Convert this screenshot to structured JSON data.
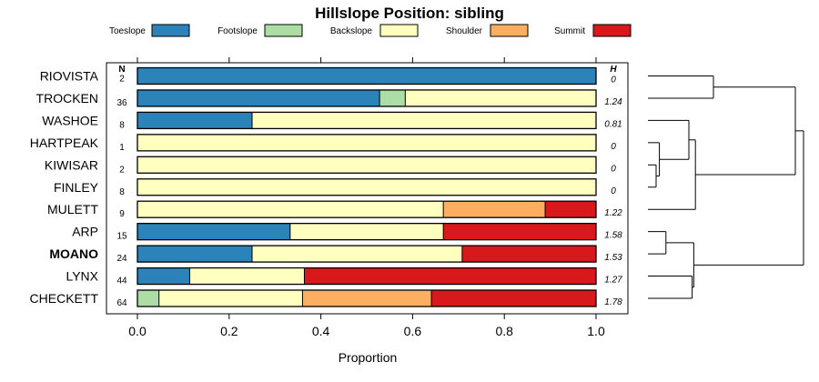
{
  "chart_data": {
    "type": "bar",
    "orientation": "horizontal-stacked-proportion",
    "title": "Hillslope Position: sibling",
    "xlabel": "Proportion",
    "xlim": [
      0,
      1
    ],
    "xticks": [
      0.0,
      0.2,
      0.4,
      0.6,
      0.8,
      1.0
    ],
    "xtick_labels": [
      "0.0",
      "0.2",
      "0.4",
      "0.6",
      "0.8",
      "1.0"
    ],
    "n_header": "N",
    "h_header": "H",
    "legend": [
      {
        "name": "Toeslope",
        "color": "#2b83ba"
      },
      {
        "name": "Footslope",
        "color": "#abdda4"
      },
      {
        "name": "Backslope",
        "color": "#ffffbf"
      },
      {
        "name": "Shoulder",
        "color": "#fdae61"
      },
      {
        "name": "Summit",
        "color": "#d7191c"
      }
    ],
    "categories": [
      "RIOVISTA",
      "TROCKEN",
      "WASHOE",
      "HARTPEAK",
      "KIWISAR",
      "FINLEY",
      "MULETT",
      "ARP",
      "MOANO",
      "LYNX",
      "CHECKETT"
    ],
    "highlight": "MOANO",
    "n": [
      "2",
      "36",
      "8",
      "1",
      "2",
      "8",
      "9",
      "15",
      "24",
      "44",
      "64"
    ],
    "h": [
      "0",
      "1.24",
      "0.81",
      "0",
      "0",
      "0",
      "1.22",
      "1.58",
      "1.53",
      "1.27",
      "1.78"
    ],
    "series": [
      {
        "name": "Toeslope",
        "values": [
          1.0,
          0.528,
          0.25,
          0,
          0,
          0,
          0,
          0.333,
          0.25,
          0.114,
          0
        ]
      },
      {
        "name": "Footslope",
        "values": [
          0,
          0.056,
          0,
          0,
          0,
          0,
          0,
          0,
          0,
          0,
          0.047
        ]
      },
      {
        "name": "Backslope",
        "values": [
          0,
          0.416,
          0.75,
          1.0,
          1.0,
          1.0,
          0.667,
          0.334,
          0.458,
          0.25,
          0.313
        ]
      },
      {
        "name": "Shoulder",
        "values": [
          0,
          0,
          0,
          0,
          0,
          0,
          0.222,
          0,
          0,
          0,
          0.281
        ]
      },
      {
        "name": "Summit",
        "values": [
          0,
          0,
          0,
          0,
          0,
          0,
          0.111,
          0.333,
          0.292,
          0.636,
          0.359
        ]
      }
    ],
    "dendrogram": {
      "leaves": [
        "RIOVISTA",
        "TROCKEN",
        "WASHOE",
        "HARTPEAK",
        "KIWISAR",
        "FINLEY",
        "MULETT",
        "ARP",
        "MOANO",
        "LYNX",
        "CHECKETT"
      ],
      "merges": [
        {
          "left": "RIOVISTA",
          "right": "TROCKEN",
          "height": 0.4
        },
        {
          "left": "KIWISAR",
          "right": "FINLEY",
          "height": 0.05
        },
        {
          "left": "HARTPEAK",
          "right": "KIWISAR+FINLEY",
          "height": 0.07
        },
        {
          "left": "WASHOE",
          "right": "HARTPEAK+KIWISAR+FINLEY",
          "height": 0.25
        },
        {
          "left": "MULETT",
          "right": "WASHOE+HARTPEAK+KIWISAR+FINLEY",
          "height": 0.29
        },
        {
          "left": "RIOVISTA+TROCKEN",
          "right": "MULETT+WASHOE+HARTPEAK+KIWISAR+FINLEY",
          "height": 0.9
        },
        {
          "left": "ARP",
          "right": "MOANO",
          "height": 0.11
        },
        {
          "left": "LYNX",
          "right": "CHECKETT",
          "height": 0.27
        },
        {
          "left": "ARP+MOANO",
          "right": "LYNX+CHECKETT",
          "height": 0.28
        },
        {
          "left": "upper",
          "right": "lower",
          "height": 0.95
        }
      ]
    }
  }
}
